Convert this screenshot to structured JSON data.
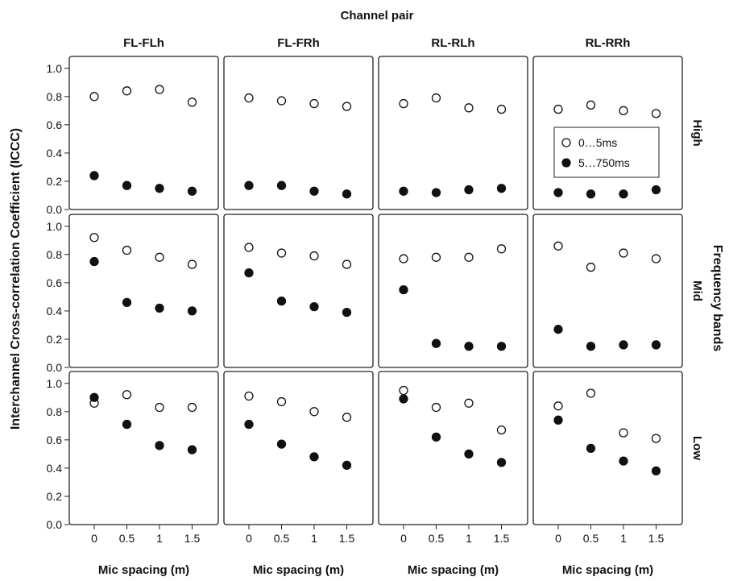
{
  "chart_data": {
    "type": "scatter",
    "layout": "faceted-grid",
    "title": "Channel pair",
    "ylabel": "Interchannel Cross-correlation Coefficient (ICCC)",
    "xlabel": "Mic spacing (m)",
    "row_strip_title": "Frequency bands",
    "columns": [
      "FL-FLh",
      "FL-FRh",
      "RL-RLh",
      "RL-RRh"
    ],
    "rows": [
      "High",
      "Mid",
      "Low"
    ],
    "x": [
      "0",
      "0.5",
      "1",
      "1.5"
    ],
    "x_ticks": [
      "0",
      "0.5",
      "1",
      "1.5"
    ],
    "ylim": [
      0,
      1.05
    ],
    "y_ticks": [
      "0.0",
      "0.2",
      "0.4",
      "0.6",
      "0.8",
      "1.0"
    ],
    "grid": false,
    "legend_position": "inside top-right panel, right side",
    "series_styles": [
      {
        "name": "0…5ms",
        "marker": "open-circle",
        "color": "#111111"
      },
      {
        "name": "5…750ms",
        "marker": "filled-circle",
        "color": "#111111"
      }
    ],
    "panels": [
      {
        "row": "High",
        "column": "FL-FLh",
        "series": [
          {
            "name": "0…5ms",
            "values": [
              0.8,
              0.84,
              0.85,
              0.76
            ]
          },
          {
            "name": "5…750ms",
            "values": [
              0.24,
              0.17,
              0.15,
              0.13
            ]
          }
        ]
      },
      {
        "row": "High",
        "column": "FL-FRh",
        "series": [
          {
            "name": "0…5ms",
            "values": [
              0.79,
              0.77,
              0.75,
              0.73
            ]
          },
          {
            "name": "5…750ms",
            "values": [
              0.17,
              0.17,
              0.13,
              0.11
            ]
          }
        ]
      },
      {
        "row": "High",
        "column": "RL-RLh",
        "series": [
          {
            "name": "0…5ms",
            "values": [
              0.75,
              0.79,
              0.72,
              0.71
            ]
          },
          {
            "name": "5…750ms",
            "values": [
              0.13,
              0.12,
              0.14,
              0.15
            ]
          }
        ]
      },
      {
        "row": "High",
        "column": "RL-RRh",
        "series": [
          {
            "name": "0…5ms",
            "values": [
              0.71,
              0.74,
              0.7,
              0.68
            ]
          },
          {
            "name": "5…750ms",
            "values": [
              0.12,
              0.11,
              0.11,
              0.14
            ]
          }
        ]
      },
      {
        "row": "Mid",
        "column": "FL-FLh",
        "series": [
          {
            "name": "0…5ms",
            "values": [
              0.92,
              0.83,
              0.78,
              0.73
            ]
          },
          {
            "name": "5…750ms",
            "values": [
              0.75,
              0.46,
              0.42,
              0.4
            ]
          }
        ]
      },
      {
        "row": "Mid",
        "column": "FL-FRh",
        "series": [
          {
            "name": "0…5ms",
            "values": [
              0.85,
              0.81,
              0.79,
              0.73
            ]
          },
          {
            "name": "5…750ms",
            "values": [
              0.67,
              0.47,
              0.43,
              0.39
            ]
          }
        ]
      },
      {
        "row": "Mid",
        "column": "RL-RLh",
        "series": [
          {
            "name": "0…5ms",
            "values": [
              0.77,
              0.78,
              0.78,
              0.84
            ]
          },
          {
            "name": "5…750ms",
            "values": [
              0.55,
              0.17,
              0.15,
              0.15
            ]
          }
        ]
      },
      {
        "row": "Mid",
        "column": "RL-RRh",
        "series": [
          {
            "name": "0…5ms",
            "values": [
              0.86,
              0.71,
              0.81,
              0.77
            ]
          },
          {
            "name": "5…750ms",
            "values": [
              0.27,
              0.15,
              0.16,
              0.16
            ]
          }
        ]
      },
      {
        "row": "Low",
        "column": "FL-FLh",
        "series": [
          {
            "name": "0…5ms",
            "values": [
              0.86,
              0.92,
              0.83,
              0.83
            ]
          },
          {
            "name": "5…750ms",
            "values": [
              0.9,
              0.71,
              0.56,
              0.53
            ]
          }
        ]
      },
      {
        "row": "Low",
        "column": "FL-FRh",
        "series": [
          {
            "name": "0…5ms",
            "values": [
              0.91,
              0.87,
              0.8,
              0.76
            ]
          },
          {
            "name": "5…750ms",
            "values": [
              0.71,
              0.57,
              0.48,
              0.42
            ]
          }
        ]
      },
      {
        "row": "Low",
        "column": "RL-RLh",
        "series": [
          {
            "name": "0…5ms",
            "values": [
              0.95,
              0.83,
              0.86,
              0.67
            ]
          },
          {
            "name": "5…750ms",
            "values": [
              0.89,
              0.62,
              0.5,
              0.44
            ]
          }
        ]
      },
      {
        "row": "Low",
        "column": "RL-RRh",
        "series": [
          {
            "name": "0…5ms",
            "values": [
              0.84,
              0.93,
              0.65,
              0.61
            ]
          },
          {
            "name": "5…750ms",
            "values": [
              0.74,
              0.54,
              0.45,
              0.38
            ]
          }
        ]
      }
    ]
  }
}
